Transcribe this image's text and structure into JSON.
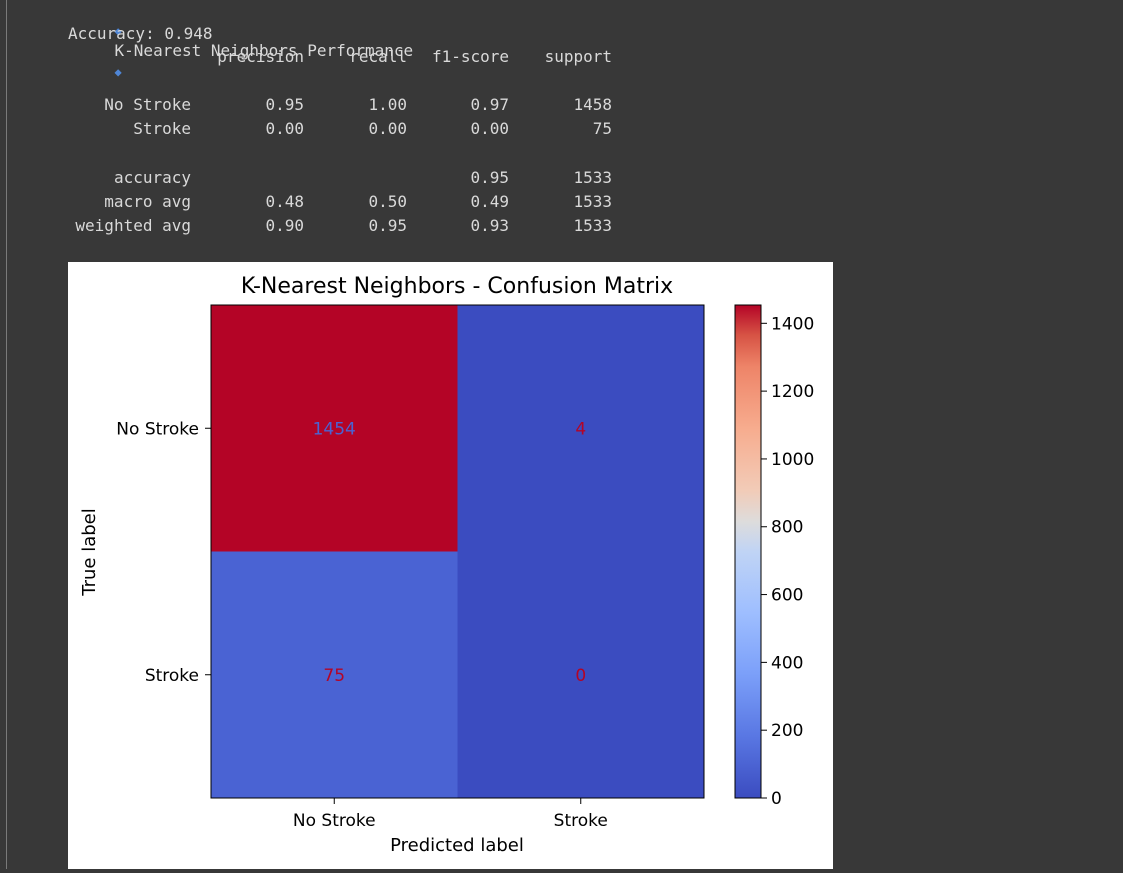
{
  "output": {
    "header_title": "K-Nearest Neighbors Performance",
    "accuracy_line": "Accuracy: 0.948",
    "report": {
      "columns": [
        "precision",
        "recall",
        "f1-score",
        "support"
      ],
      "rows": [
        {
          "label": "No Stroke",
          "precision": "0.95",
          "recall": "1.00",
          "f1": "0.97",
          "support": "1458"
        },
        {
          "label": "Stroke",
          "precision": "0.00",
          "recall": "0.00",
          "f1": "0.00",
          "support": "75"
        },
        {
          "label": "accuracy",
          "precision": "",
          "recall": "",
          "f1": "0.95",
          "support": "1533"
        },
        {
          "label": "macro avg",
          "precision": "0.48",
          "recall": "0.50",
          "f1": "0.49",
          "support": "1533"
        },
        {
          "label": "weighted avg",
          "precision": "0.90",
          "recall": "0.95",
          "f1": "0.93",
          "support": "1533"
        }
      ]
    },
    "accent_color": "#4f86d6"
  },
  "chart_data": {
    "type": "heatmap",
    "title": "K-Nearest Neighbors - Confusion Matrix",
    "xlabel": "Predicted label",
    "ylabel": "True label",
    "x_categories": [
      "No Stroke",
      "Stroke"
    ],
    "y_categories": [
      "No Stroke",
      "Stroke"
    ],
    "values": [
      [
        1454,
        4
      ],
      [
        75,
        0
      ]
    ],
    "colormap": "coolwarm",
    "colorbar": {
      "min": 0,
      "max": 1454,
      "ticks": [
        0,
        200,
        400,
        600,
        800,
        1000,
        1200,
        1400
      ]
    },
    "cell_colors": [
      [
        "#b40426",
        "#3b4cc0"
      ],
      [
        "#4a63d3",
        "#3b4cc0"
      ]
    ],
    "annotation_colors": [
      [
        "#4a63d3",
        "#b40426"
      ],
      [
        "#b40426",
        "#b40426"
      ]
    ]
  }
}
